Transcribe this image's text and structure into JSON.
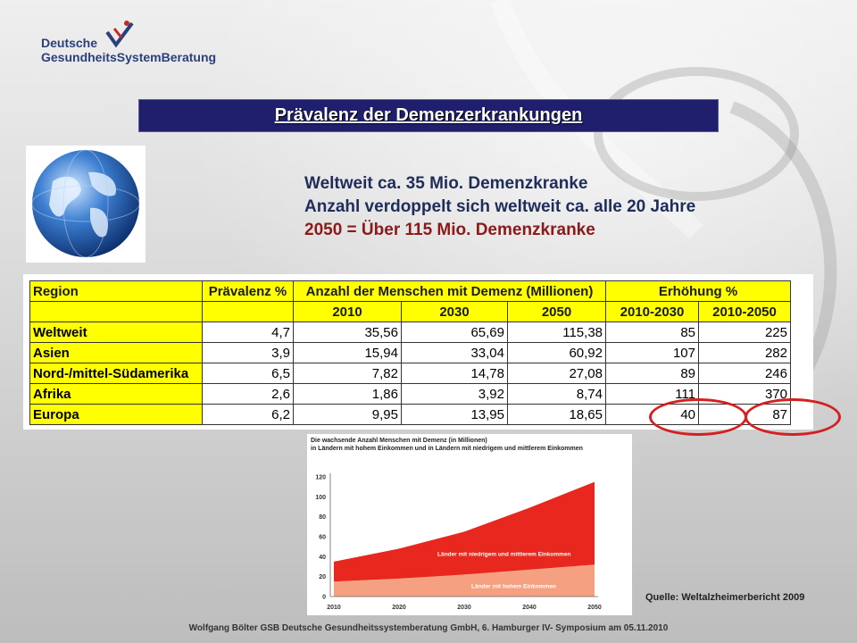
{
  "logo": {
    "line1": "Deutsche",
    "line2": "GesundheitsSystemBeratung"
  },
  "title": "Prävalenz der Demenzerkrankungen",
  "headline": {
    "line1": "Weltweit ca. 35 Mio. Demenzkranke",
    "line2": "Anzahl verdoppelt sich weltweit ca. alle 20 Jahre",
    "line3": "2050 = Über 115 Mio. Demenzkranke"
  },
  "table": {
    "headers": {
      "region": "Region",
      "prevalence": "Prävalenz %",
      "people": "Anzahl der Menschen mit Demenz (Millionen)",
      "increase": "Erhöhung %"
    },
    "subheaders": [
      "2010",
      "2030",
      "2050",
      "2010-2030",
      "2010-2050"
    ],
    "rows": [
      {
        "region": "Weltweit",
        "prev": "4,7",
        "y2010": "35,56",
        "y2030": "65,69",
        "y2050": "115,38",
        "inc2030": "85",
        "inc2050": "225"
      },
      {
        "region": "Asien",
        "prev": "3,9",
        "y2010": "15,94",
        "y2030": "33,04",
        "y2050": "60,92",
        "inc2030": "107",
        "inc2050": "282"
      },
      {
        "region": "Nord-/mittel-Südamerika",
        "prev": "6,5",
        "y2010": "7,82",
        "y2030": "14,78",
        "y2050": "27,08",
        "inc2030": "89",
        "inc2050": "246"
      },
      {
        "region": "Afrika",
        "prev": "2,6",
        "y2010": "1,86",
        "y2030": "3,92",
        "y2050": "8,74",
        "inc2030": "111",
        "inc2050": "370"
      },
      {
        "region": "Europa",
        "prev": "6,2",
        "y2010": "9,95",
        "y2030": "13,95",
        "y2050": "18,65",
        "inc2030": "40",
        "inc2050": "87"
      }
    ]
  },
  "chart_data": {
    "type": "area",
    "title": "Die wachsende Anzahl Menschen mit Demenz (in Millionen)",
    "subtitle": "in Ländern mit hohem Einkommen und in Ländern mit niedrigem und mittlerem Einkommen",
    "x": [
      2010,
      2020,
      2030,
      2040,
      2050
    ],
    "xticks": [
      "2010",
      "2020",
      "2030",
      "2040",
      "2050"
    ],
    "yticks": [
      "0",
      "20",
      "40",
      "60",
      "80",
      "100",
      "120"
    ],
    "ylim": [
      0,
      120
    ],
    "stacked": true,
    "series": [
      {
        "name": "Länder mit hohem Einkommen",
        "values": [
          15,
          18,
          22,
          27,
          32
        ],
        "color": "#f5a080"
      },
      {
        "name": "Länder mit niedrigem und mittlerem Einkommen",
        "values": [
          20,
          30,
          43,
          62,
          83
        ],
        "color": "#e8281e"
      }
    ]
  },
  "source": "Quelle: Weltalzheimerbericht 2009",
  "footer": "Wolfgang Bölter GSB Deutsche Gesundheitssystemberatung GmbH,  6. Hamburger IV- Symposium am 05.11.2010"
}
